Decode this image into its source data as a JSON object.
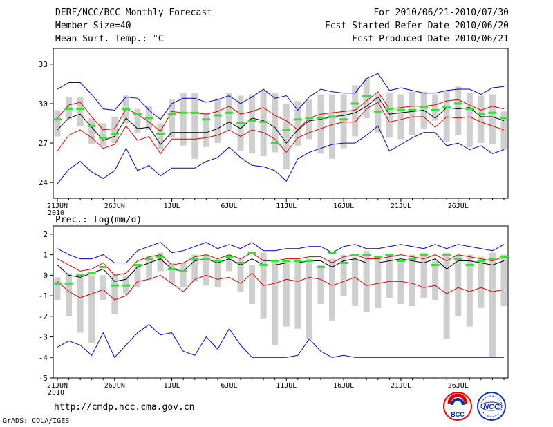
{
  "header": {
    "title": "DERF/NCC/BCC Monthly Forecast",
    "member_size": "Member Size=40",
    "variable": "Mean Surf. Temp.: °C",
    "period": "For 2010/06/21-2010/07/30",
    "started": "Fcst Started Refer Date 2010/06/20",
    "produced": "Fcst Produced Date 2010/06/21"
  },
  "footer": {
    "url": "http://cmdp.ncc.cma.gov.cn",
    "credit": "GrADS: COLA/IGES",
    "logo_bcc": "BCC",
    "logo_ncc": "NCC"
  },
  "colors": {
    "outer": "#0000c8",
    "inner": "#d80000",
    "mean": "#000000",
    "obs": "#3cdc3c",
    "bars": "#cfcfcf"
  },
  "chart_data": [
    {
      "type": "line",
      "title": "Mean Surf. Temp.: °C",
      "ylim": [
        22.8,
        34.2
      ],
      "yticks": [
        24,
        27,
        30,
        33
      ],
      "xlabels": [
        "21JUN",
        "26JUN",
        "1JUL",
        "6JUL",
        "11JUL",
        "16JUL",
        "21JUL",
        "26JUL"
      ],
      "xyear": "2010",
      "days": 40,
      "series": [
        {
          "name": "upper",
          "values": [
            31.1,
            31.6,
            31.6,
            30.7,
            29.6,
            29.5,
            30.5,
            30.4,
            29.5,
            28.8,
            30.0,
            30.4,
            30.4,
            30.1,
            30.3,
            30.6,
            30.0,
            30.5,
            31.1,
            30.4,
            30.6,
            29.5,
            30.5,
            31.1,
            30.9,
            30.8,
            30.8,
            31.9,
            32.3,
            31.0,
            31.2,
            31.0,
            30.8,
            30.8,
            31.0,
            31.1,
            31.1,
            30.7,
            31.2,
            31.3
          ]
        },
        {
          "name": "upper_inner",
          "values": [
            28.9,
            29.9,
            30.1,
            29.0,
            28.0,
            28.1,
            29.6,
            29.2,
            28.6,
            27.9,
            29.4,
            29.3,
            29.3,
            29.2,
            29.4,
            29.8,
            29.2,
            29.4,
            29.7,
            29.1,
            28.7,
            28.0,
            28.9,
            29.2,
            29.3,
            29.4,
            29.5,
            30.2,
            30.9,
            29.6,
            29.7,
            29.8,
            29.8,
            29.9,
            30.2,
            30.3,
            29.9,
            29.5,
            29.8,
            29.6
          ]
        },
        {
          "name": "mean",
          "values": [
            28.0,
            28.9,
            29.2,
            28.2,
            27.2,
            27.5,
            28.9,
            28.1,
            28.2,
            26.9,
            27.8,
            27.8,
            27.8,
            27.8,
            28.1,
            28.6,
            28.1,
            28.9,
            28.7,
            28.2,
            27.0,
            28.0,
            28.7,
            28.8,
            29.0,
            29.1,
            29.3,
            29.8,
            30.5,
            29.2,
            29.3,
            29.4,
            29.5,
            28.9,
            29.7,
            29.6,
            29.7,
            29.0,
            29.0,
            28.7
          ]
        },
        {
          "name": "lower_inner",
          "values": [
            26.4,
            27.6,
            28.0,
            27.4,
            26.6,
            26.9,
            28.3,
            27.2,
            27.5,
            26.2,
            27.3,
            27.3,
            27.3,
            27.4,
            27.6,
            28.0,
            27.5,
            28.0,
            27.8,
            27.3,
            26.3,
            27.4,
            27.8,
            28.1,
            28.4,
            28.6,
            28.6,
            29.6,
            30.1,
            28.6,
            28.8,
            29.0,
            29.0,
            28.2,
            29.0,
            28.9,
            29.0,
            28.6,
            28.3,
            28.0
          ]
        },
        {
          "name": "lower",
          "values": [
            23.9,
            25.0,
            25.6,
            24.8,
            24.3,
            24.9,
            26.6,
            24.9,
            25.3,
            24.5,
            25.1,
            25.1,
            25.1,
            25.6,
            25.9,
            26.7,
            25.9,
            25.3,
            25.2,
            24.9,
            24.1,
            25.8,
            26.3,
            26.6,
            26.9,
            27.0,
            27.0,
            27.6,
            28.3,
            26.4,
            26.9,
            27.4,
            27.8,
            27.8,
            26.8,
            27.0,
            26.5,
            26.8,
            26.2,
            26.5
          ]
        },
        {
          "name": "observed",
          "values": [
            28.8,
            29.6,
            29.6,
            28.3,
            27.4,
            27.7,
            29.6,
            29.2,
            28.9,
            27.7,
            29.2,
            29.3,
            29.3,
            28.8,
            29.1,
            29.3,
            28.5,
            28.7,
            28.6,
            27.0,
            28.0,
            28.8,
            28.9,
            28.9,
            29.0,
            28.8,
            30.0,
            30.6,
            29.4,
            29.6,
            29.5,
            29.5,
            29.7,
            29.5,
            29.7,
            30.0,
            29.6,
            29.2,
            29.3,
            28.9
          ]
        }
      ],
      "bars": [
        [
          27.5,
          29.5
        ],
        [
          28.8,
          30.5
        ],
        [
          28.3,
          30.5
        ],
        [
          26.9,
          28.9
        ],
        [
          26.8,
          28.5
        ],
        [
          27.0,
          29.0
        ],
        [
          28.5,
          30.6
        ],
        [
          27.8,
          29.6
        ],
        [
          28.0,
          29.8
        ],
        [
          26.5,
          28.5
        ],
        [
          27.4,
          30.3
        ],
        [
          26.8,
          30.8
        ],
        [
          25.8,
          30.8
        ],
        [
          26.7,
          29.3
        ],
        [
          27.0,
          30.4
        ],
        [
          28.0,
          30.8
        ],
        [
          26.4,
          30.6
        ],
        [
          26.2,
          30.7
        ],
        [
          26.0,
          31.0
        ],
        [
          26.3,
          30.8
        ],
        [
          25.0,
          30.0
        ],
        [
          26.8,
          30.2
        ],
        [
          27.3,
          30.3
        ],
        [
          26.2,
          30.7
        ],
        [
          25.8,
          30.7
        ],
        [
          26.6,
          30.7
        ],
        [
          27.5,
          31.4
        ],
        [
          28.9,
          31.9
        ],
        [
          27.8,
          30.7
        ],
        [
          27.4,
          30.8
        ],
        [
          27.3,
          30.7
        ],
        [
          27.6,
          30.9
        ],
        [
          28.1,
          30.9
        ],
        [
          28.7,
          30.7
        ],
        [
          27.1,
          31.0
        ],
        [
          27.6,
          31.3
        ],
        [
          26.7,
          30.8
        ],
        [
          27.0,
          30.6
        ],
        [
          26.9,
          30.7
        ],
        [
          26.5,
          29.4
        ]
      ]
    },
    {
      "type": "line",
      "title": "Prec.: log(mm/d)",
      "ylim": [
        -5,
        2.4
      ],
      "yticks": [
        -5,
        -4,
        -3,
        -2,
        -1,
        0,
        1,
        2
      ],
      "xlabels": [
        "21JUN",
        "26JUN",
        "1JUL",
        "6JUL",
        "11JUL",
        "16JUL",
        "21JUL",
        "26JUL"
      ],
      "xyear": "2010",
      "days": 40,
      "series": [
        {
          "name": "upper",
          "values": [
            1.3,
            1.0,
            0.8,
            0.8,
            1.0,
            0.6,
            0.6,
            1.2,
            1.4,
            1.6,
            1.1,
            1.2,
            1.4,
            1.6,
            1.3,
            1.5,
            1.3,
            1.6,
            1.2,
            1.2,
            1.3,
            1.3,
            1.4,
            1.4,
            1.1,
            1.4,
            1.5,
            1.3,
            1.3,
            1.4,
            1.5,
            1.4,
            1.3,
            1.5,
            1.3,
            1.5,
            1.4,
            1.3,
            1.2,
            1.5
          ]
        },
        {
          "name": "upper_inner",
          "values": [
            0.8,
            0.5,
            0.2,
            0.3,
            0.6,
            0.0,
            0.1,
            0.7,
            0.9,
            1.0,
            0.5,
            0.6,
            0.9,
            1.0,
            0.8,
            1.0,
            0.8,
            1.1,
            0.7,
            0.7,
            0.8,
            0.8,
            0.9,
            0.9,
            0.6,
            0.9,
            1.0,
            0.8,
            0.8,
            0.9,
            1.0,
            0.9,
            0.8,
            1.0,
            0.7,
            1.0,
            0.9,
            0.8,
            0.7,
            0.9
          ]
        },
        {
          "name": "mean",
          "values": [
            0.5,
            0.0,
            -0.1,
            0.1,
            0.3,
            -0.3,
            -0.2,
            0.4,
            0.6,
            0.8,
            0.3,
            0.2,
            0.7,
            0.8,
            0.6,
            0.8,
            0.5,
            0.8,
            0.5,
            0.5,
            0.6,
            0.6,
            0.7,
            0.7,
            0.4,
            0.7,
            0.8,
            0.6,
            0.6,
            0.7,
            0.8,
            0.7,
            0.6,
            0.8,
            0.3,
            0.7,
            0.7,
            0.6,
            0.5,
            0.7
          ]
        },
        {
          "name": "lower_inner",
          "values": [
            -0.3,
            -0.8,
            -1.1,
            -0.9,
            -0.7,
            -1.2,
            -1.0,
            -0.3,
            -0.2,
            0.0,
            -0.4,
            -0.8,
            -0.2,
            0.0,
            -0.2,
            -0.1,
            -0.4,
            0.1,
            -0.5,
            -0.4,
            -0.2,
            -0.3,
            -0.1,
            -0.2,
            -0.5,
            -0.3,
            -0.1,
            -0.5,
            -0.4,
            -0.3,
            -0.3,
            -0.4,
            -0.6,
            -0.5,
            -0.9,
            -0.6,
            -0.8,
            -0.6,
            -0.8,
            -0.7
          ]
        },
        {
          "name": "lower",
          "values": [
            -3.5,
            -3.2,
            -3.4,
            -3.9,
            -2.8,
            -4.0,
            -3.4,
            -2.8,
            -2.4,
            -2.9,
            -2.8,
            -3.7,
            -3.9,
            -3.0,
            -3.6,
            -2.6,
            -3.4,
            -4.0,
            -4.0,
            -4.0,
            -4.0,
            -3.9,
            -3.1,
            -3.7,
            -4.0,
            -3.9,
            -4.0,
            -4.0,
            -4.0,
            -4.0,
            -4.0,
            -4.0,
            -4.0,
            -4.0,
            -4.0,
            -4.0,
            -4.0,
            -4.0,
            -4.0,
            -4.0
          ]
        },
        {
          "name": "observed",
          "values": [
            -0.4,
            -0.4,
            0.0,
            0.1,
            0.4,
            -0.5,
            -0.5,
            0.5,
            0.8,
            0.9,
            0.3,
            0.2,
            0.8,
            0.8,
            0.7,
            0.9,
            0.6,
            1.1,
            0.5,
            0.7,
            0.7,
            0.7,
            0.7,
            0.4,
            1.1,
            0.6,
            1.0,
            1.0,
            0.9,
            1.0,
            0.7,
            0.8,
            1.0,
            0.5,
            1.0,
            0.8,
            0.5,
            0.7,
            0.8,
            0.9
          ]
        }
      ],
      "bars": [
        [
          -1.2,
          -0.1
        ],
        [
          -2.0,
          0.1
        ],
        [
          -2.8,
          -0.1
        ],
        [
          -3.3,
          0.0
        ],
        [
          -1.2,
          0.0
        ],
        [
          -1.9,
          0.0
        ],
        [
          -0.9,
          0.0
        ],
        [
          -0.6,
          0.5
        ],
        [
          -0.2,
          0.9
        ],
        [
          0.2,
          1.1
        ],
        [
          -0.4,
          0.6
        ],
        [
          -0.6,
          0.6
        ],
        [
          -0.3,
          1.0
        ],
        [
          -0.5,
          1.0
        ],
        [
          -0.6,
          0.8
        ],
        [
          0.2,
          1.0
        ],
        [
          -0.8,
          0.8
        ],
        [
          -1.4,
          0.5
        ],
        [
          -2.1,
          1.1
        ],
        [
          -3.4,
          0.7
        ],
        [
          -2.5,
          0.7
        ],
        [
          -2.6,
          0.8
        ],
        [
          -3.1,
          0.8
        ],
        [
          -1.4,
          0.5
        ],
        [
          -2.2,
          0.8
        ],
        [
          -1.0,
          1.0
        ],
        [
          -1.5,
          0.9
        ],
        [
          -1.8,
          1.2
        ],
        [
          -1.6,
          0.9
        ],
        [
          -1.1,
          0.9
        ],
        [
          -1.4,
          0.7
        ],
        [
          -1.5,
          1.0
        ],
        [
          -1.1,
          1.1
        ],
        [
          -1.2,
          0.7
        ],
        [
          -3.1,
          1.1
        ],
        [
          -2.0,
          1.0
        ],
        [
          -2.5,
          1.0
        ],
        [
          -1.6,
          0.9
        ],
        [
          -4.0,
          1.1
        ],
        [
          -1.5,
          1.0
        ]
      ]
    }
  ]
}
